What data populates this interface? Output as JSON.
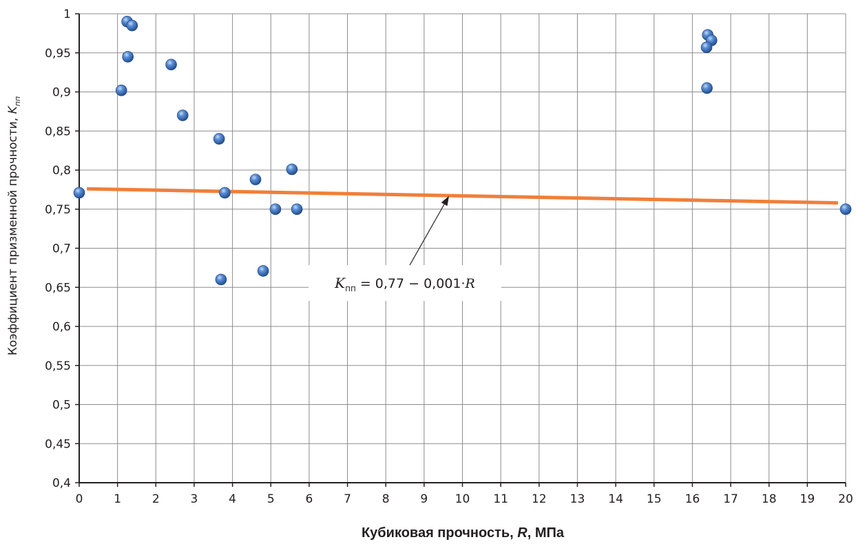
{
  "chart_data": {
    "type": "scatter",
    "title": "",
    "xlabel": {
      "main": "Кубиковая прочность, ",
      "sym": "R",
      "rest": ", МПа"
    },
    "ylabel": {
      "main": "Коэффициент призменной прочности, ",
      "sym": "K",
      "sub": "пп"
    },
    "xlim": [
      0,
      20
    ],
    "ylim": [
      0.4,
      1.0
    ],
    "x_ticks": [
      "0",
      "1",
      "2",
      "3",
      "4",
      "5",
      "6",
      "7",
      "8",
      "9",
      "10",
      "11",
      "12",
      "13",
      "14",
      "15",
      "16",
      "17",
      "18",
      "19",
      "20"
    ],
    "y_ticks": [
      "0,4",
      "0,45",
      "0,5",
      "0,55",
      "0,6",
      "0,65",
      "0,7",
      "0,75",
      "0,8",
      "0,85",
      "0,9",
      "0,95",
      "1"
    ],
    "grid": true,
    "legend": "none",
    "colors": {
      "points": "#3d6fc0",
      "trend": "#f07f3a",
      "grid": "#8c8c8c",
      "axis": "#231f20"
    },
    "series": [
      {
        "type": "scatter",
        "points": [
          {
            "x": 0.0,
            "y": 0.771
          },
          {
            "x": 1.1,
            "y": 0.902
          },
          {
            "x": 1.25,
            "y": 0.99
          },
          {
            "x": 1.38,
            "y": 0.985
          },
          {
            "x": 1.27,
            "y": 0.945
          },
          {
            "x": 2.4,
            "y": 0.935
          },
          {
            "x": 2.7,
            "y": 0.87
          },
          {
            "x": 3.65,
            "y": 0.84
          },
          {
            "x": 3.7,
            "y": 0.66
          },
          {
            "x": 3.8,
            "y": 0.771
          },
          {
            "x": 4.6,
            "y": 0.788
          },
          {
            "x": 4.8,
            "y": 0.671
          },
          {
            "x": 5.12,
            "y": 0.75
          },
          {
            "x": 5.55,
            "y": 0.801
          },
          {
            "x": 5.68,
            "y": 0.75
          },
          {
            "x": 16.4,
            "y": 0.973
          },
          {
            "x": 16.5,
            "y": 0.966
          },
          {
            "x": 16.37,
            "y": 0.957
          },
          {
            "x": 16.38,
            "y": 0.905
          },
          {
            "x": 20.0,
            "y": 0.75
          }
        ]
      },
      {
        "type": "line",
        "points": [
          {
            "x": 0.2,
            "y": 0.776
          },
          {
            "x": 19.8,
            "y": 0.758
          }
        ]
      }
    ],
    "annotation": {
      "sym": "K",
      "sub": "пп",
      "formula": " = 0,77 − 0,001·",
      "var": "R",
      "arrow_to": {
        "x": 9.65,
        "y": 0.767
      }
    }
  }
}
